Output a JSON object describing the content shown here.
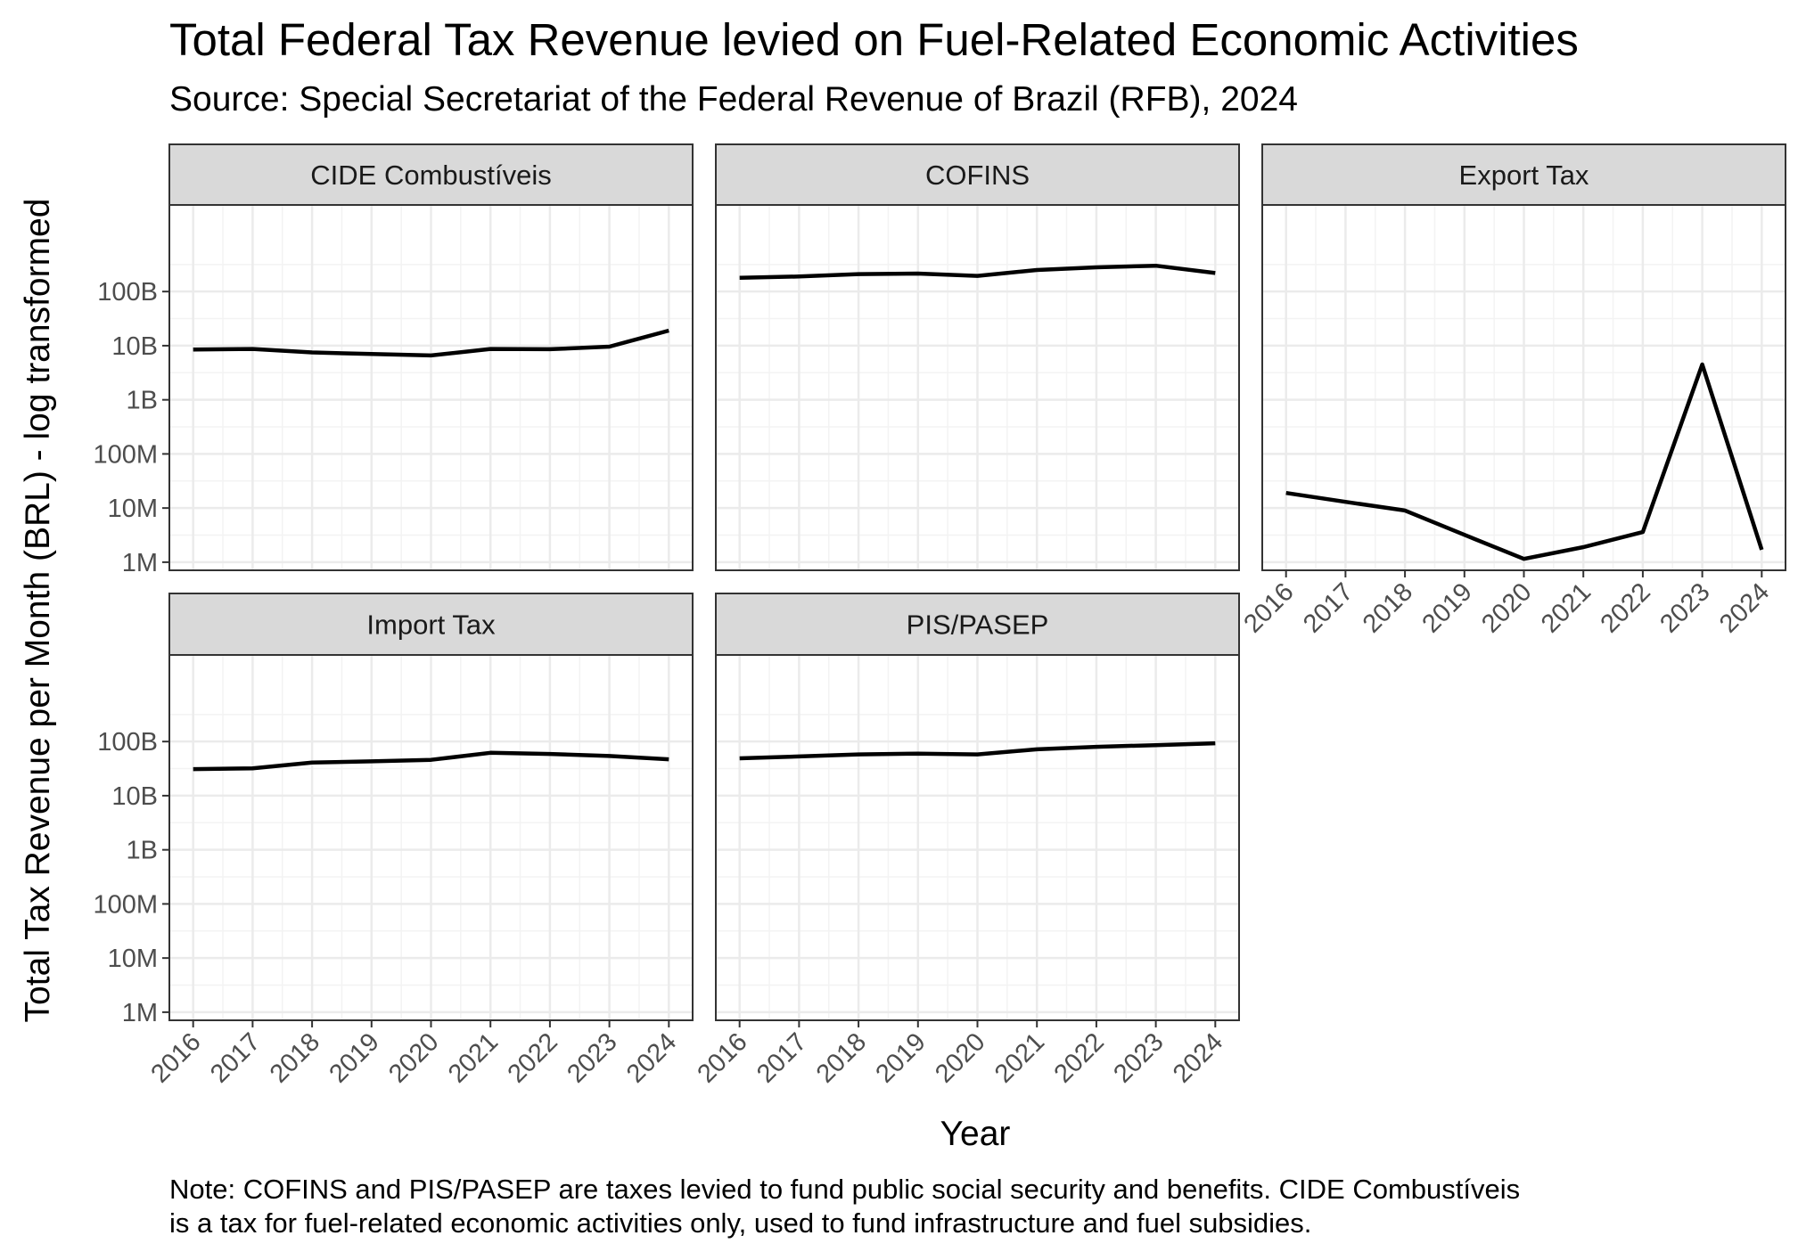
{
  "title": "Total Federal Tax Revenue levied on Fuel-Related Economic Activities",
  "subtitle": "Source: Special Secretariat of the Federal Revenue of Brazil (RFB), 2024",
  "note_line1": "Note: COFINS and PIS/PASEP are taxes levied to fund public social security and benefits. CIDE Combustíveis",
  "note_line2": "is a tax for fuel-related economic activities only, used to fund infrastructure and fuel subsidies.",
  "colors": {
    "line": "#000000",
    "strip_bg": "#d9d9d9",
    "panel_border": "#333333",
    "grid_major": "#ebebeb",
    "grid_minor": "#f3f3f3"
  },
  "chart_data": {
    "type": "line",
    "facet": "wrap",
    "xlabel": "Year",
    "ylabel": "Total Tax Revenue per Month (BRL) - log transformed",
    "y_scale": "log10",
    "grid": true,
    "x": [
      2016,
      2017,
      2018,
      2019,
      2020,
      2021,
      2022,
      2023,
      2024
    ],
    "x_tick_labels": [
      "2016",
      "2017",
      "2018",
      "2019",
      "2020",
      "2021",
      "2022",
      "2023",
      "2024"
    ],
    "y_ticks": [
      1000000,
      10000000,
      100000000,
      1000000000,
      10000000000,
      100000000000
    ],
    "y_tick_labels": [
      "1M",
      "10M",
      "100M",
      "1B",
      "10B",
      "100B"
    ],
    "series": [
      {
        "name": "CIDE Combustíveis",
        "values": [
          8500000000,
          8700000000,
          7500000000,
          7000000000,
          6600000000,
          8700000000,
          8600000000,
          9600000000,
          19000000000
        ]
      },
      {
        "name": "COFINS",
        "values": [
          180000000000,
          190000000000,
          210000000000,
          215000000000,
          195000000000,
          250000000000,
          280000000000,
          300000000000,
          220000000000
        ]
      },
      {
        "name": "Export Tax",
        "values": [
          19000000,
          13000000,
          9000000,
          3200000,
          1150000,
          1900000,
          3600000,
          4500000000,
          1700000
        ]
      },
      {
        "name": "Import Tax",
        "values": [
          31000000000,
          32000000000,
          41000000000,
          43000000000,
          46000000000,
          62000000000,
          59000000000,
          54000000000,
          47000000000
        ]
      },
      {
        "name": "PIS/PASEP",
        "values": [
          49000000000,
          53000000000,
          58000000000,
          60000000000,
          58000000000,
          72000000000,
          80000000000,
          86000000000,
          93000000000
        ]
      }
    ]
  }
}
